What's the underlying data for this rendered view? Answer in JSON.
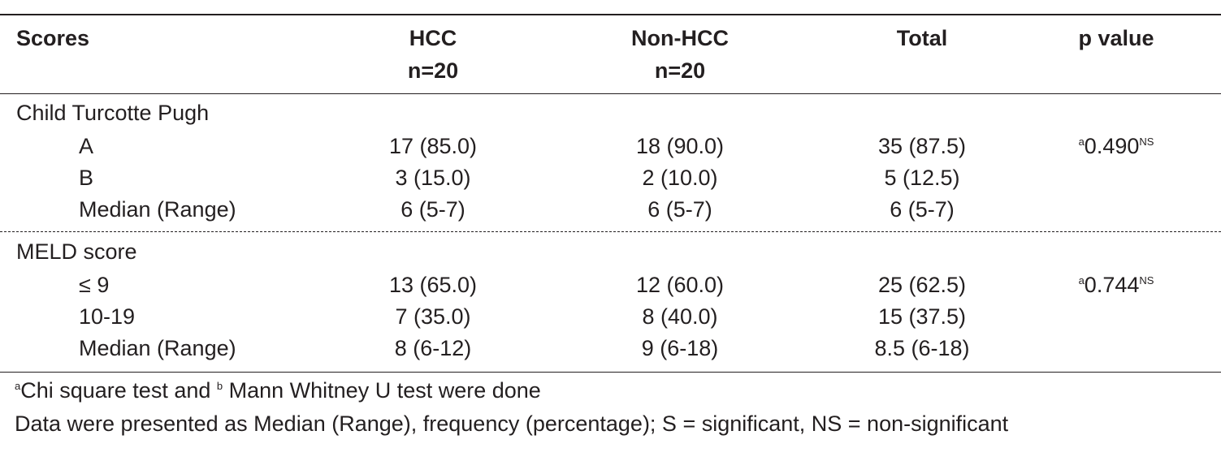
{
  "header": {
    "scores": "Scores",
    "hcc": "HCC",
    "hcc_n": "n=20",
    "non_hcc": "Non-HCC",
    "non_hcc_n": "n=20",
    "total": "Total",
    "p_value": "p value"
  },
  "ctp": {
    "title": "Child Turcotte Pugh",
    "rows": [
      {
        "label": "A",
        "hcc": "17 (85.0)",
        "non_hcc": "18 (90.0)",
        "total": "35 (87.5)"
      },
      {
        "label": "B",
        "hcc": "3 (15.0)",
        "non_hcc": "2 (10.0)",
        "total": "5 (12.5)"
      },
      {
        "label": "Median (Range)",
        "hcc": "6 (5-7)",
        "non_hcc": "6 (5-7)",
        "total": "6 (5-7)"
      }
    ],
    "p_sup_pre": "a",
    "p": "0.490",
    "p_sup_post": "NS"
  },
  "meld": {
    "title": "MELD score",
    "rows": [
      {
        "label": "≤ 9",
        "hcc": "13 (65.0)",
        "non_hcc": "12 (60.0)",
        "total": "25 (62.5)"
      },
      {
        "label": "10-19",
        "hcc": "7 (35.0)",
        "non_hcc": "8 (40.0)",
        "total": "15 (37.5)"
      },
      {
        "label": "Median (Range)",
        "hcc": "8 (6-12)",
        "non_hcc": "9 (6-18)",
        "total": "8.5 (6-18)"
      }
    ],
    "p_sup_pre": "a",
    "p": "0.744",
    "p_sup_post": "NS"
  },
  "footnotes": {
    "line1_sup_a": "a",
    "line1_part1": "Chi square test and ",
    "line1_sup_b": "b",
    "line1_part2": " Mann Whitney U test were done",
    "line2": "Data were presented as Median (Range), frequency (percentage); S = significant, NS = non-significant"
  }
}
